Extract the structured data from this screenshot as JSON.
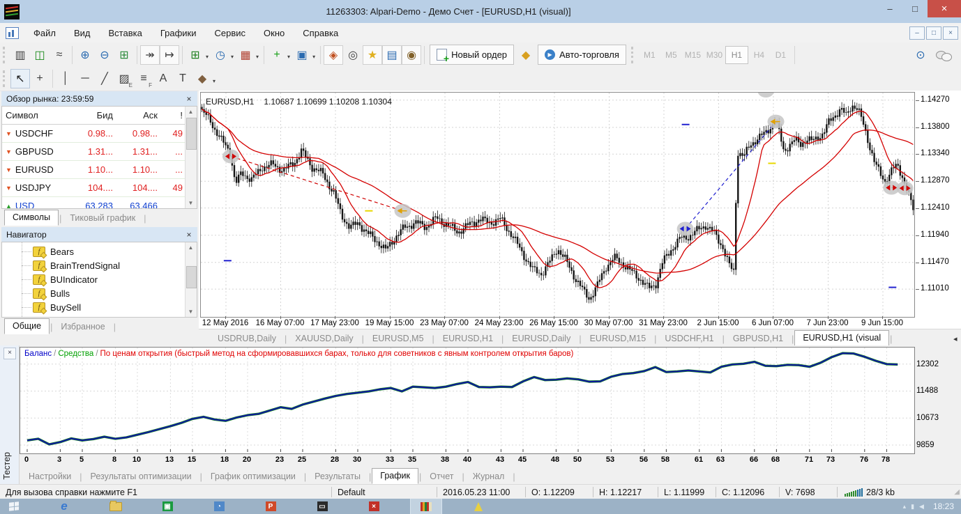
{
  "window": {
    "title": "11263303: Alpari-Demo - Демо Счет - [EURUSD,H1 (visual)]",
    "controls": {
      "minimize": "–",
      "maximize": "□",
      "close": "×"
    }
  },
  "menu": {
    "items": [
      "Файл",
      "Вид",
      "Вставка",
      "Графики",
      "Сервис",
      "Окно",
      "Справка"
    ]
  },
  "toolbar": {
    "new_order_label": "Новый ордер",
    "autotrade_label": "Авто-торговля",
    "timeframes": [
      "M1",
      "M5",
      "M15",
      "M30",
      "H1",
      "H4",
      "D1"
    ],
    "active_timeframe": "H1",
    "icons_row1": [
      {
        "name": "bar-chart-icon",
        "glyph": "▥",
        "color": "#404040"
      },
      {
        "name": "candlestick-chart-icon",
        "glyph": "◫",
        "color": "#1a8a1a"
      },
      {
        "name": "line-chart-icon",
        "glyph": "≈",
        "color": "#404040",
        "sep_after": true
      },
      {
        "name": "zoom-in-icon",
        "glyph": "⊕",
        "color": "#2a6ab0"
      },
      {
        "name": "zoom-out-icon",
        "glyph": "⊖",
        "color": "#2a6ab0"
      },
      {
        "name": "tile-windows-icon",
        "glyph": "⊞",
        "color": "#2a8a3a",
        "sep_after": true
      },
      {
        "name": "auto-scroll-icon",
        "glyph": "↠",
        "color": "#404040",
        "boxed": true
      },
      {
        "name": "chart-shift-icon",
        "glyph": "↦",
        "color": "#404040",
        "boxed": true,
        "sep_after": true
      },
      {
        "name": "new-chart-icon",
        "glyph": "⊞",
        "color": "#208020",
        "dropdown": true
      },
      {
        "name": "periods-icon",
        "glyph": "◷",
        "color": "#2a6ab0",
        "dropdown": true
      },
      {
        "name": "templates-icon",
        "glyph": "▦",
        "color": "#b04030",
        "dropdown": true,
        "sep_after": true
      },
      {
        "name": "add-indicator-icon",
        "glyph": "+",
        "color": "#18a018",
        "dropdown": true
      },
      {
        "name": "tile-cascade-icon",
        "glyph": "▣",
        "color": "#2a6ab0",
        "dropdown": true,
        "sep_after": true
      },
      {
        "name": "expert-advisors-icon",
        "glyph": "◈",
        "color": "#c05020",
        "boxed": true
      },
      {
        "name": "crosshair-mode-icon",
        "glyph": "◎",
        "color": "#404040"
      },
      {
        "name": "favorites-icon",
        "glyph": "★",
        "color": "#e0b020",
        "boxed": true
      },
      {
        "name": "data-window-icon",
        "glyph": "▤",
        "color": "#2a6ab0",
        "boxed": true
      },
      {
        "name": "strategy-tester-icon",
        "glyph": "◉",
        "color": "#806028",
        "boxed": true,
        "sep_after": true
      }
    ],
    "history_icon": {
      "name": "history-icon",
      "glyph": "◆",
      "color": "#d8a020"
    },
    "right_icons": [
      {
        "name": "symbol-search-icon",
        "glyph": "⊙",
        "color": "#2a6ab0"
      }
    ],
    "icons_row2": [
      {
        "name": "cursor-tool-icon",
        "glyph": "↖",
        "color": "#202020",
        "active": true
      },
      {
        "name": "crosshair-tool-icon",
        "glyph": "+",
        "color": "#404040",
        "sep_after": true
      },
      {
        "name": "vertical-line-tool-icon",
        "glyph": "│",
        "color": "#404040"
      },
      {
        "name": "horizontal-line-tool-icon",
        "glyph": "─",
        "color": "#404040"
      },
      {
        "name": "trendline-tool-icon",
        "glyph": "╱",
        "color": "#404040"
      },
      {
        "name": "equidistant-channel-tool-icon",
        "glyph": "▨",
        "color": "#404040",
        "sub": "E"
      },
      {
        "name": "fibonacci-tool-icon",
        "glyph": "≡",
        "color": "#404040",
        "sub": "F"
      },
      {
        "name": "text-tool-icon",
        "glyph": "A",
        "color": "#404040"
      },
      {
        "name": "text-label-tool-icon",
        "glyph": "T",
        "color": "#404040"
      },
      {
        "name": "arrows-tool-icon",
        "glyph": "◆",
        "color": "#806040",
        "dropdown": true
      }
    ]
  },
  "market_watch": {
    "title": "Обзор рынка: 23:59:59",
    "columns": [
      "Символ",
      "Бид",
      "Аск",
      "!"
    ],
    "rows": [
      {
        "symbol": "USDCHF",
        "bid": "0.98...",
        "ask": "0.98...",
        "spread": "49",
        "dir": "down"
      },
      {
        "symbol": "GBPUSD",
        "bid": "1.31...",
        "ask": "1.31...",
        "spread": "...",
        "dir": "down"
      },
      {
        "symbol": "EURUSD",
        "bid": "1.10...",
        "ask": "1.10...",
        "spread": "...",
        "dir": "down"
      },
      {
        "symbol": "USDJPY",
        "bid": "104....",
        "ask": "104....",
        "spread": "49",
        "dir": "down"
      },
      {
        "symbol": "USD",
        "bid": "63.283",
        "ask": "63.466",
        "spread": "",
        "dir": "up"
      }
    ],
    "tabs": [
      "Символы",
      "Тиковый график"
    ],
    "active_tab": "Символы"
  },
  "navigator": {
    "title": "Навигатор",
    "items": [
      "Bears",
      "BrainTrendSignal",
      "BUIndicator",
      "Bulls",
      "BuySell"
    ],
    "tabs": [
      "Общие",
      "Избранное"
    ],
    "active_tab": "Общие"
  },
  "chart": {
    "symbol_period": "EURUSD,H1",
    "ohlc": "1.10687 1.10699 1.10208 1.10304"
  },
  "chart_tabs": {
    "tabs": [
      "USDRUB,Daily",
      "XAUUSD,Daily",
      "EURUSD,M5",
      "EURUSD,H1",
      "EURUSD,Daily",
      "EURUSD,M15",
      "USDCHF,H1",
      "GBPUSD,H1",
      "EURUSD,H1 (visual"
    ],
    "active": "EURUSD,H1 (visual"
  },
  "tester": {
    "panel_label": "Тестер",
    "legend": [
      {
        "text": "Баланс",
        "color": "#0000C8"
      },
      {
        "text": "Средства",
        "color": "#00A000"
      },
      {
        "text": "По ценам открытия (быстрый метод на сформировавшихся барах, только для советников с явным контролем открытия баров)",
        "color": "#E00000"
      }
    ],
    "tabs": [
      "Настройки",
      "Результаты оптимизации",
      "График оптимизации",
      "Результаты",
      "График",
      "Отчет",
      "Журнал"
    ],
    "active_tab": "График"
  },
  "status_bar": {
    "help": "Для вызова справки нажмите F1",
    "profile": "Default",
    "time": "2016.05.23 11:00",
    "open": "O: 1.12209",
    "high": "H: 1.12217",
    "low": "L: 1.11999",
    "close": "C: 1.12096",
    "volume": "V: 7698",
    "traffic": "28/3 kb"
  },
  "taskbar": {
    "clock": "18:23",
    "apps": [
      {
        "name": "taskbar-ie-icon",
        "glyph": "e",
        "fg": "#ffffff",
        "bg": "#4a86d8"
      },
      {
        "name": "taskbar-explorer-icon",
        "type": "folder"
      },
      {
        "name": "taskbar-green-app-icon",
        "glyph": "▣",
        "fg": "#ffffff",
        "bg": "#1a9a40"
      },
      {
        "name": "taskbar-blue-app-icon",
        "glyph": "◔",
        "fg": "#ffffff",
        "bg": "#5088c8"
      },
      {
        "name": "taskbar-office-app-icon",
        "glyph": "P",
        "fg": "#ffffff",
        "bg": "#d04a28"
      },
      {
        "name": "taskbar-monitor-app-icon",
        "glyph": "▭",
        "fg": "#e8e8e8",
        "bg": "#2a2a2a"
      },
      {
        "name": "taskbar-red-x-app-icon",
        "glyph": "×",
        "fg": "#ffffff",
        "bg": "#c23028"
      },
      {
        "name": "taskbar-mt4-icon",
        "type": "mt4",
        "active": true
      },
      {
        "name": "taskbar-sail-app-icon",
        "type": "sail"
      }
    ]
  },
  "chart_data": [
    {
      "type": "candlestick",
      "title": "EURUSD,H1 (visual)",
      "price_axis_ticks": [
        "1.14270",
        "1.13800",
        "1.13340",
        "1.12870",
        "1.12410",
        "1.11940",
        "1.11470",
        "1.11010"
      ],
      "time_axis_ticks": [
        "12 May 2016",
        "16 May 07:00",
        "17 May 23:00",
        "19 May 15:00",
        "23 May 07:00",
        "24 May 23:00",
        "26 May 15:00",
        "30 May 07:00",
        "31 May 23:00",
        "2 Jun 15:00",
        "6 Jun 07:00",
        "7 Jun 23:00",
        "9 Jun 15:00"
      ],
      "ylim": [
        1.1053,
        1.144
      ],
      "bars": 330,
      "ma_color": "#D40000",
      "price_path": [
        [
          0.0,
          1.1408
        ],
        [
          0.012,
          1.1392
        ],
        [
          0.025,
          1.1362
        ],
        [
          0.04,
          1.1338
        ],
        [
          0.047,
          1.1282
        ],
        [
          0.056,
          1.1302
        ],
        [
          0.07,
          1.129
        ],
        [
          0.085,
          1.1312
        ],
        [
          0.1,
          1.1316
        ],
        [
          0.115,
          1.1306
        ],
        [
          0.13,
          1.132
        ],
        [
          0.14,
          1.134
        ],
        [
          0.155,
          1.1312
        ],
        [
          0.17,
          1.13
        ],
        [
          0.185,
          1.1268
        ],
        [
          0.196,
          1.123
        ],
        [
          0.208,
          1.1207
        ],
        [
          0.22,
          1.1216
        ],
        [
          0.232,
          1.1198
        ],
        [
          0.245,
          1.1186
        ],
        [
          0.258,
          1.1168
        ],
        [
          0.27,
          1.1188
        ],
        [
          0.285,
          1.1208
        ],
        [
          0.3,
          1.1216
        ],
        [
          0.315,
          1.1209
        ],
        [
          0.33,
          1.1224
        ],
        [
          0.345,
          1.1212
        ],
        [
          0.36,
          1.12
        ],
        [
          0.375,
          1.1212
        ],
        [
          0.39,
          1.1222
        ],
        [
          0.405,
          1.1216
        ],
        [
          0.42,
          1.1222
        ],
        [
          0.435,
          1.1196
        ],
        [
          0.45,
          1.1165
        ],
        [
          0.465,
          1.1135
        ],
        [
          0.478,
          1.1128
        ],
        [
          0.49,
          1.115
        ],
        [
          0.5,
          1.1172
        ],
        [
          0.512,
          1.115
        ],
        [
          0.525,
          1.112
        ],
        [
          0.538,
          1.1095
        ],
        [
          0.545,
          1.1085
        ],
        [
          0.555,
          1.1105
        ],
        [
          0.568,
          1.114
        ],
        [
          0.58,
          1.1155
        ],
        [
          0.592,
          1.1145
        ],
        [
          0.605,
          1.113
        ],
        [
          0.617,
          1.1118
        ],
        [
          0.628,
          1.1102
        ],
        [
          0.638,
          1.111
        ],
        [
          0.648,
          1.1148
        ],
        [
          0.66,
          1.117
        ],
        [
          0.672,
          1.1188
        ],
        [
          0.684,
          1.1192
        ],
        [
          0.696,
          1.1202
        ],
        [
          0.708,
          1.1212
        ],
        [
          0.72,
          1.1198
        ],
        [
          0.732,
          1.1175
        ],
        [
          0.742,
          1.114
        ],
        [
          0.749,
          1.113
        ],
        [
          0.752,
          1.134
        ],
        [
          0.762,
          1.133
        ],
        [
          0.772,
          1.1352
        ],
        [
          0.782,
          1.1362
        ],
        [
          0.792,
          1.137
        ],
        [
          0.8,
          1.1382
        ],
        [
          0.806,
          1.1392
        ],
        [
          0.812,
          1.137
        ],
        [
          0.818,
          1.134
        ],
        [
          0.826,
          1.135
        ],
        [
          0.834,
          1.1358
        ],
        [
          0.842,
          1.1352
        ],
        [
          0.85,
          1.136
        ],
        [
          0.858,
          1.1356
        ],
        [
          0.866,
          1.1364
        ],
        [
          0.874,
          1.137
        ],
        [
          0.882,
          1.139
        ],
        [
          0.89,
          1.1402
        ],
        [
          0.898,
          1.1412
        ],
        [
          0.906,
          1.14
        ],
        [
          0.914,
          1.142
        ],
        [
          0.922,
          1.1412
        ],
        [
          0.93,
          1.1386
        ],
        [
          0.938,
          1.1352
        ],
        [
          0.946,
          1.1318
        ],
        [
          0.954,
          1.13
        ],
        [
          0.962,
          1.1286
        ],
        [
          0.97,
          1.1306
        ],
        [
          0.978,
          1.1316
        ],
        [
          0.986,
          1.1292
        ],
        [
          0.994,
          1.1262
        ],
        [
          1.0,
          1.124
        ]
      ],
      "moving_averages": [
        {
          "name": "fast MA",
          "period": 13,
          "color": "#D40000"
        },
        {
          "name": "slow MA",
          "period": 55,
          "color": "#D40000"
        }
      ],
      "trade_markers": [
        {
          "x": 0.042,
          "price": 1.133,
          "kind": "sell",
          "color": "#D00000"
        },
        {
          "x": 0.283,
          "price": 1.1236,
          "kind": "exit",
          "color": "#E0A000"
        },
        {
          "x": 0.679,
          "price": 1.1205,
          "kind": "buy",
          "color": "#2020D0"
        },
        {
          "x": 0.806,
          "price": 1.139,
          "kind": "exit",
          "color": "#E0A000"
        },
        {
          "x": 0.968,
          "price": 1.1276,
          "kind": "sell",
          "color": "#D00000"
        },
        {
          "x": 0.987,
          "price": 1.1275,
          "kind": "sell",
          "color": "#D00000"
        }
      ],
      "trade_lines": [
        {
          "from": 0,
          "to": 1,
          "color": "#D00000"
        },
        {
          "from": 2,
          "to": 3,
          "color": "#2020D0"
        },
        {
          "from": 4,
          "to": 5,
          "color": "#D00000"
        }
      ],
      "level_dashes": [
        {
          "x": 0.037,
          "price": 1.115,
          "color": "#2020D0"
        },
        {
          "x": 0.235,
          "price": 1.1236,
          "color": "#E8D800"
        },
        {
          "x": 0.679,
          "price": 1.1385,
          "color": "#2020D0"
        },
        {
          "x": 0.8,
          "price": 1.1318,
          "color": "#E8D800"
        },
        {
          "x": 0.969,
          "price": 1.1104,
          "color": "#2020D0"
        }
      ]
    },
    {
      "type": "line",
      "title": "Баланс",
      "ylabels": [
        "12302",
        "11488",
        "10673",
        "9859"
      ],
      "yvalues": [
        12302,
        11488,
        10673,
        9859
      ],
      "xticks": [
        "0",
        "3",
        "5",
        "8",
        "10",
        "13",
        "15",
        "18",
        "20",
        "23",
        "25",
        "28",
        "30",
        "33",
        "35",
        "38",
        "40",
        "43",
        "45",
        "48",
        "50",
        "53",
        "56",
        "58",
        "61",
        "63",
        "66",
        "68",
        "71",
        "73",
        "76",
        "78"
      ],
      "ylim": [
        9650,
        12800
      ],
      "line_color": "#101A9E",
      "equity_color": "#108A10",
      "values": [
        10000,
        10050,
        9880,
        9950,
        10060,
        10000,
        10040,
        10110,
        10050,
        10090,
        10170,
        10250,
        10340,
        10430,
        10530,
        10650,
        10710,
        10630,
        10590,
        10690,
        10760,
        10800,
        10900,
        11000,
        10950,
        11080,
        11170,
        11260,
        11340,
        11400,
        11440,
        11480,
        11540,
        11580,
        11480,
        11620,
        11600,
        11580,
        11620,
        11700,
        11760,
        11610,
        11600,
        11620,
        11610,
        11780,
        11910,
        11820,
        11830,
        11870,
        11840,
        11770,
        11780,
        11920,
        12000,
        12030,
        12090,
        12210,
        12060,
        12080,
        12110,
        12080,
        12050,
        12220,
        12290,
        12310,
        12370,
        12250,
        12240,
        12280,
        12270,
        12220,
        12340,
        12510,
        12630,
        12620,
        12520,
        12400,
        12300,
        12290
      ]
    }
  ]
}
